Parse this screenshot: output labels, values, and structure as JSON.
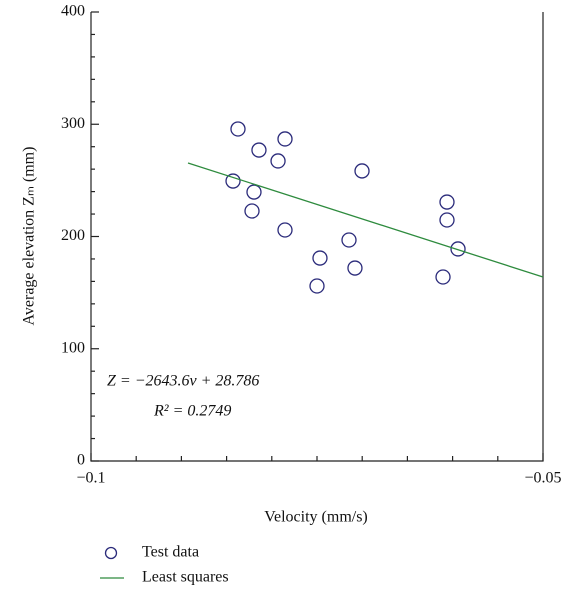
{
  "chart_data": {
    "type": "scatter",
    "xlabel": "Velocity (mm/s)",
    "ylabel": "Average elevation Zₘ (mm)",
    "xlim": [
      -0.1,
      -0.05
    ],
    "ylim": [
      0,
      400
    ],
    "xticks": [
      {
        "value": -0.1,
        "label": "−0.1"
      },
      {
        "value": -0.05,
        "label": "−0.05"
      }
    ],
    "yticks": [
      0,
      100,
      200,
      300,
      400
    ],
    "xminorticks": [
      -0.095,
      -0.09,
      -0.085,
      -0.08,
      -0.075,
      -0.07,
      -0.065,
      -0.06,
      -0.055
    ],
    "yminorticks": [
      20,
      40,
      60,
      80,
      120,
      140,
      160,
      180,
      220,
      240,
      260,
      280,
      320,
      340,
      360,
      380
    ],
    "annotations": [
      "Z = −2643.6ν + 28.786",
      "R² = 0.2749"
    ],
    "series": [
      {
        "name": "Test data",
        "color": "#2a2a7a",
        "marker": "circle",
        "x": [
          -0.08374,
          -0.08142,
          -0.07854,
          -0.07931,
          -0.08429,
          -0.08197,
          -0.08219,
          -0.07854,
          -0.07002,
          -0.07146,
          -0.07467,
          -0.0708,
          -0.075,
          -0.06062,
          -0.06062,
          -0.0594,
          -0.06106
        ],
        "values": [
          295.8,
          277,
          286.9,
          267.3,
          249.4,
          239.6,
          222.7,
          205.8,
          258.4,
          196.9,
          180.8,
          171.9,
          155.9,
          230.7,
          214.7,
          188.9,
          163.9
        ]
      },
      {
        "name": "Least squares",
        "color": "#2e8b3e",
        "marker": "line",
        "x": [
          -0.08927,
          -0.05
        ],
        "values": [
          265.5,
          163.9
        ]
      }
    ]
  }
}
